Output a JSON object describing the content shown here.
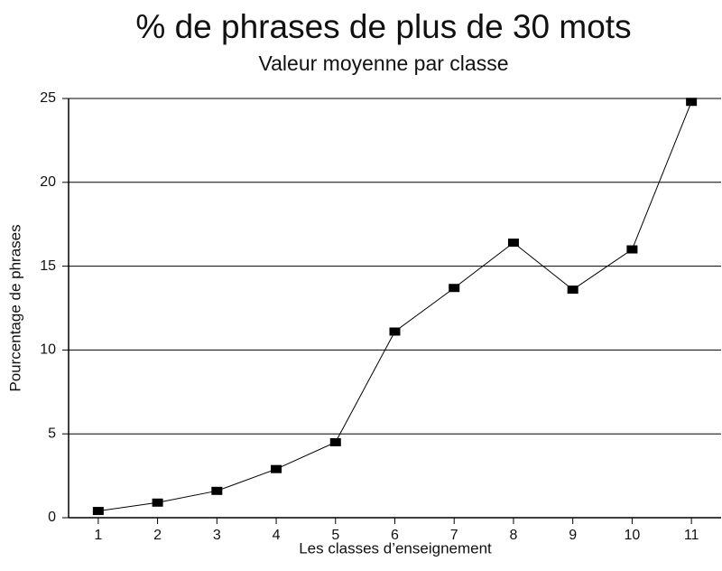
{
  "chart_data": {
    "type": "line",
    "title": "% de phrases de plus de 30 mots",
    "subtitle": "Valeur moyenne par classe",
    "x_label": "Les classes d’enseignement",
    "y_label": "Pourcentage de phrases",
    "categories": [
      "1",
      "2",
      "3",
      "4",
      "5",
      "6",
      "7",
      "8",
      "9",
      "10",
      "11"
    ],
    "values": [
      0.4,
      0.9,
      1.6,
      2.9,
      4.5,
      11.1,
      13.7,
      16.4,
      13.6,
      16.0,
      24.8
    ],
    "color": "#000000",
    "ylim": [
      0,
      25
    ],
    "yticks": [
      0,
      5,
      10,
      15,
      20,
      25
    ],
    "grid": true
  }
}
